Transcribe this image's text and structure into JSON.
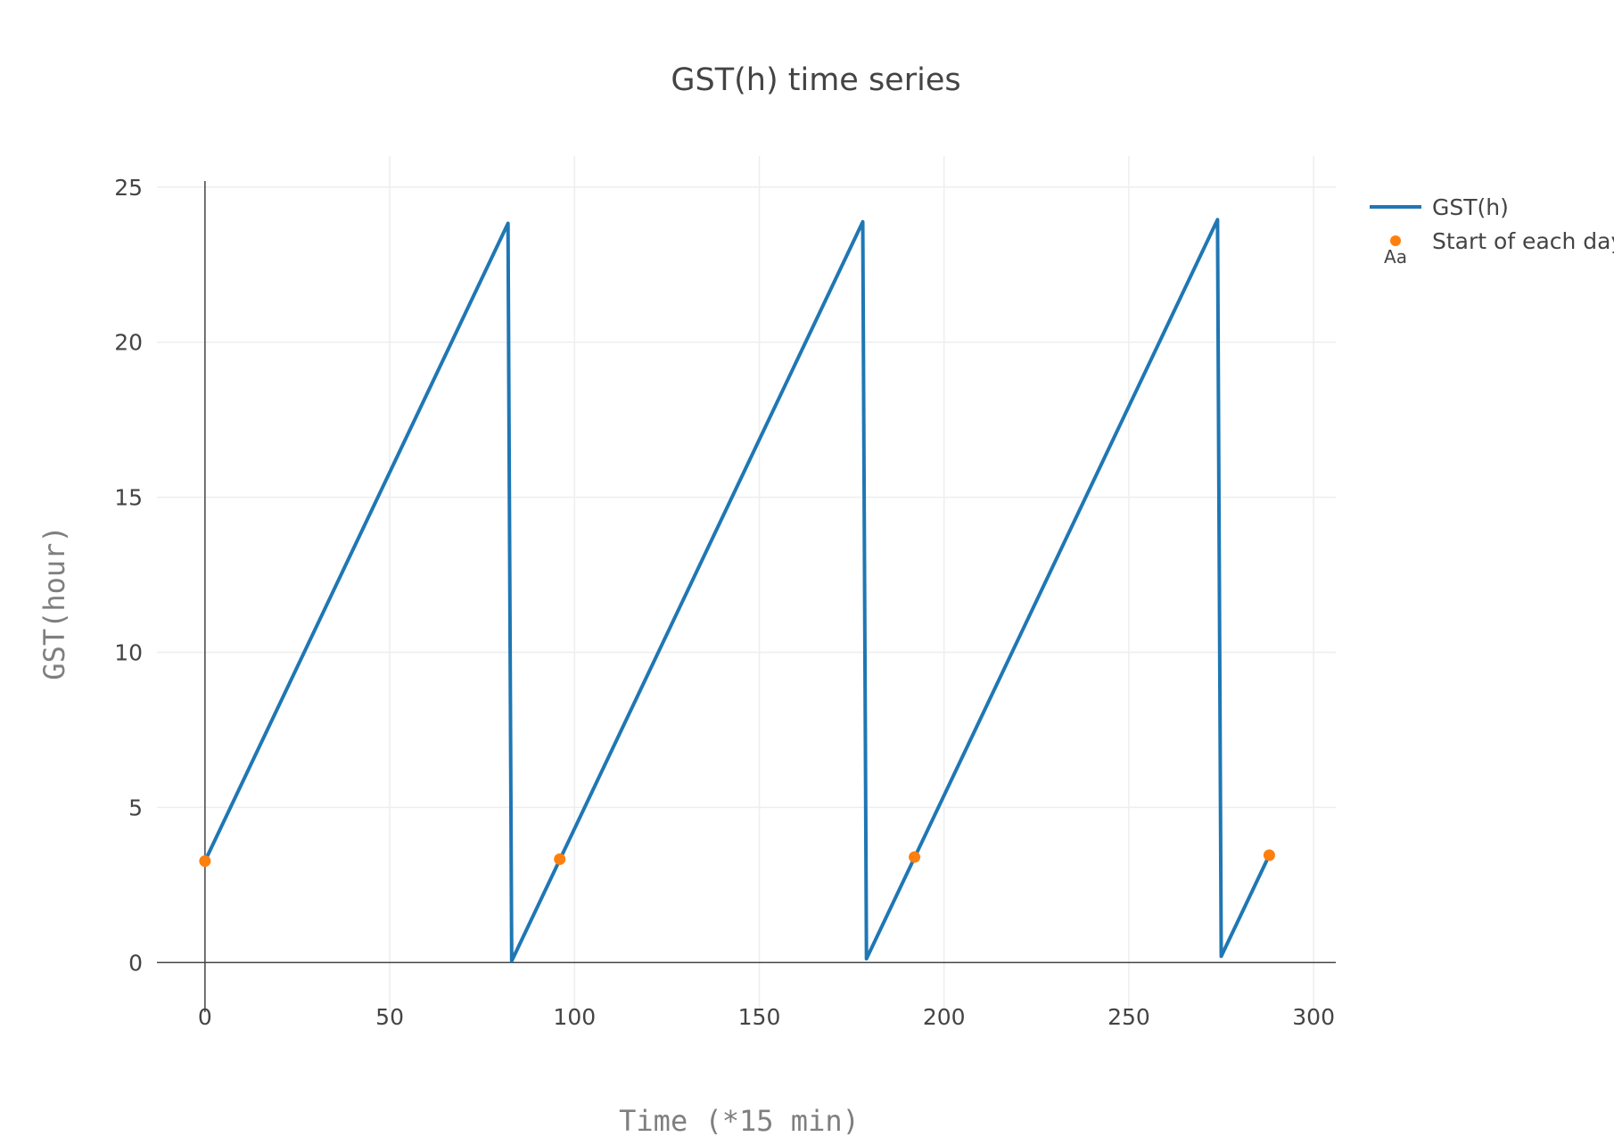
{
  "chart_data": {
    "type": "line",
    "title": "GST(h) time series",
    "xlabel": "Time (*15 min)",
    "ylabel": "GST(hour)",
    "xlim": [
      -13,
      306
    ],
    "ylim": [
      -1.6,
      26.0
    ],
    "x_ticks": [
      0,
      50,
      100,
      150,
      200,
      250,
      300
    ],
    "y_ticks": [
      0,
      5,
      10,
      15,
      20,
      25
    ],
    "grid": true,
    "legend_position": "top-right",
    "series": [
      {
        "name": "GST(h)",
        "mode": "lines",
        "color": "#1f77b4",
        "x": [
          0,
          82,
          83,
          178,
          179,
          274,
          275,
          288
        ],
        "y": [
          3.27,
          23.83,
          0.05,
          23.88,
          0.12,
          23.95,
          0.2,
          3.46
        ]
      },
      {
        "name": "Start of each day",
        "mode": "markers",
        "color": "#ff7f0e",
        "x": [
          0,
          96,
          192,
          288
        ],
        "y": [
          3.27,
          3.33,
          3.4,
          3.46
        ]
      }
    ],
    "legend_marker_label": "Aa"
  }
}
